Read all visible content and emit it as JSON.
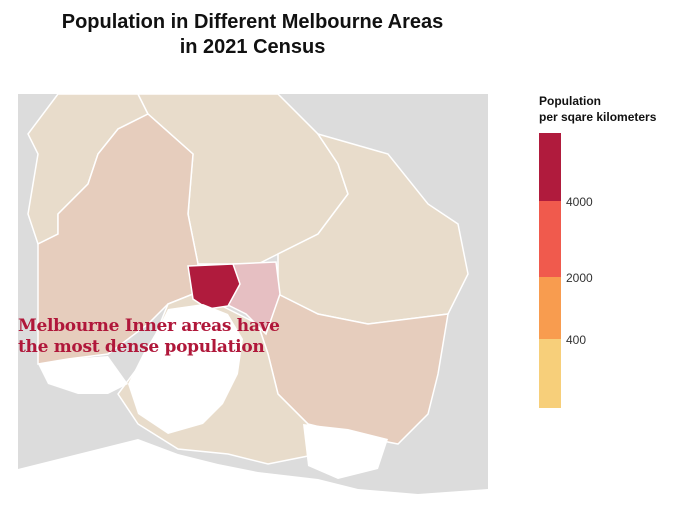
{
  "title_line1": "Population in Different Melbourne Areas",
  "title_line2": "in 2021 Census",
  "legend": {
    "title_line1": "Population",
    "title_line2": "per sqare kilometers",
    "ticks": [
      "4000",
      "2000",
      "400"
    ],
    "colors": {
      "lowest": "#f7cf7a",
      "low": "#f89c4f",
      "mid": "#f05a4d",
      "high": "#b01b3d"
    }
  },
  "map": {
    "background_color": "#dcdcdc",
    "water_color": "#ffffff",
    "region_colors": {
      "outer": "#e8dccb",
      "mid_outer": "#e6cdbd",
      "near_inner": "#e6bfc2",
      "inner": "#b01b3d"
    }
  },
  "annotation": {
    "line1": "Melbourne Inner areas have",
    "line2": "the most dense population"
  }
}
